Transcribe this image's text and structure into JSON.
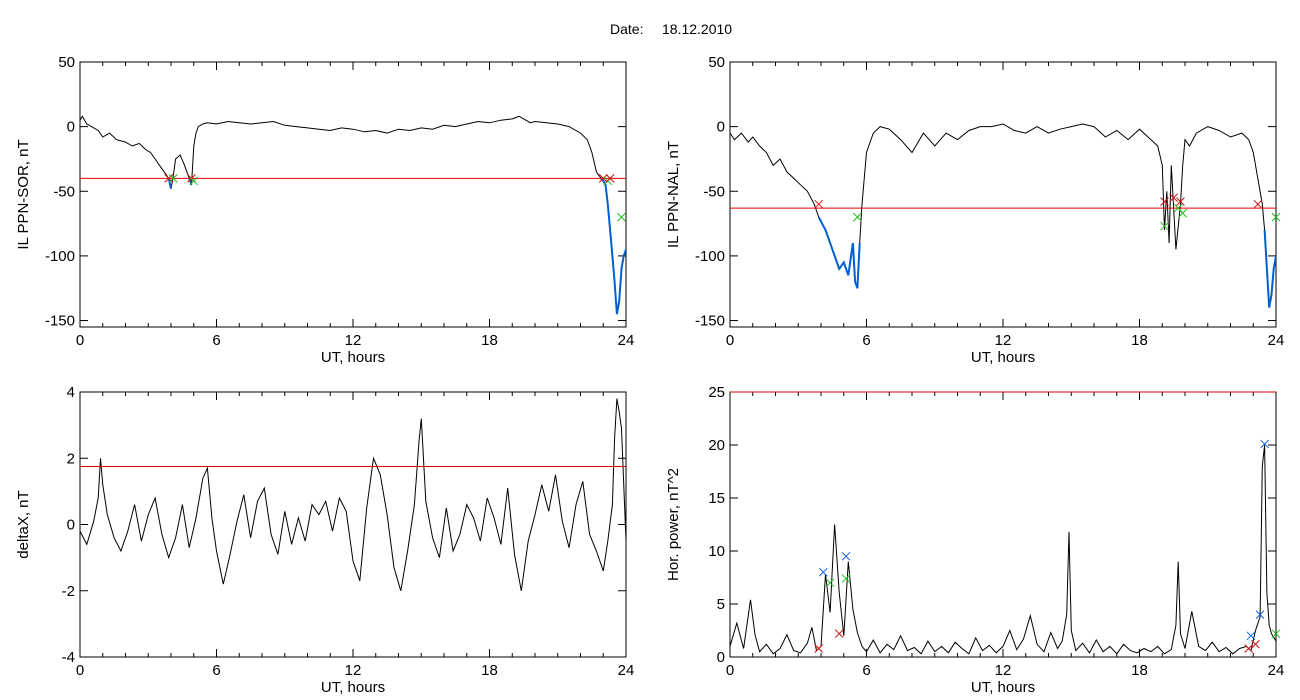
{
  "title": {
    "label": "Date:",
    "date": "18.12.2010"
  },
  "colors": {
    "trace": "#000000",
    "threshold": "#e00000",
    "highlight": "#0060d0",
    "marker_start": "#d01010",
    "marker_end": "#20c020",
    "marker_peak": "#1060e0"
  },
  "chart_data": [
    {
      "id": "il-ppn-sor",
      "type": "line",
      "xlabel": "UT, hours",
      "ylabel": "IL PPN-SOR, nT",
      "xlim": [
        0,
        24
      ],
      "ylim": [
        -155,
        50
      ],
      "xticks": [
        0,
        6,
        12,
        18,
        24
      ],
      "yticks": [
        50,
        0,
        -50,
        -100,
        -150
      ],
      "threshold": -40,
      "series": [
        {
          "x": [
            0,
            0.1,
            0.3,
            0.5,
            0.8,
            1.0,
            1.3,
            1.6,
            2.0,
            2.3,
            2.6,
            2.9,
            3.1,
            3.3,
            3.5,
            3.7,
            3.9,
            4.0,
            4.1,
            4.2,
            4.4,
            4.6,
            4.8,
            4.9,
            5.0,
            5.1,
            5.2,
            5.4,
            5.6,
            6.0,
            6.5,
            7.0,
            7.5,
            8.0,
            8.5,
            9.0,
            9.5,
            10.0,
            10.5,
            11.0,
            11.5,
            12.0,
            12.5,
            13.0,
            13.5,
            14.0,
            14.5,
            15.0,
            15.5,
            16.0,
            16.5,
            17.0,
            17.5,
            18.0,
            18.5,
            19.0,
            19.3,
            19.6,
            19.8,
            20.0,
            20.5,
            21.0,
            21.5,
            22.0,
            22.3,
            22.5,
            22.7,
            22.9,
            23.0,
            23.1,
            23.2,
            23.3,
            23.4,
            23.5,
            23.6,
            23.7,
            23.8,
            23.9,
            24.0
          ],
          "y": [
            5,
            8,
            2,
            0,
            -3,
            -8,
            -5,
            -10,
            -12,
            -15,
            -13,
            -18,
            -20,
            -25,
            -30,
            -35,
            -40,
            -48,
            -38,
            -25,
            -22,
            -30,
            -40,
            -45,
            -15,
            -5,
            0,
            2,
            3,
            2,
            4,
            3,
            2,
            3,
            4,
            1,
            0,
            -1,
            -2,
            -3,
            -1,
            -2,
            -4,
            -3,
            -5,
            -2,
            -3,
            -1,
            -2,
            1,
            0,
            2,
            4,
            3,
            5,
            6,
            8,
            5,
            3,
            4,
            3,
            2,
            0,
            -5,
            -10,
            -20,
            -35,
            -40,
            -42,
            -45,
            -60,
            -80,
            -100,
            -120,
            -145,
            -135,
            -110,
            -100,
            -95
          ]
        }
      ],
      "markers": [
        {
          "kind": "start",
          "x": 3.9,
          "y": -40
        },
        {
          "kind": "end",
          "x": 4.1,
          "y": -40
        },
        {
          "kind": "start",
          "x": 4.9,
          "y": -40
        },
        {
          "kind": "end",
          "x": 5.0,
          "y": -42
        },
        {
          "kind": "start",
          "x": 23.0,
          "y": -40
        },
        {
          "kind": "end",
          "x": 23.2,
          "y": -42
        },
        {
          "kind": "start",
          "x": 23.3,
          "y": -40
        },
        {
          "kind": "end",
          "x": 23.8,
          "y": -70
        }
      ]
    },
    {
      "id": "il-ppn-nal",
      "type": "line",
      "xlabel": "UT, hours",
      "ylabel": "IL PPN-NAL, nT",
      "xlim": [
        0,
        24
      ],
      "ylim": [
        -155,
        50
      ],
      "xticks": [
        0,
        6,
        12,
        18,
        24
      ],
      "yticks": [
        50,
        0,
        -50,
        -100,
        -150
      ],
      "threshold": -63,
      "series": [
        {
          "x": [
            0,
            0.2,
            0.5,
            0.8,
            1.0,
            1.3,
            1.6,
            1.9,
            2.2,
            2.5,
            2.8,
            3.1,
            3.4,
            3.7,
            3.9,
            4.2,
            4.5,
            4.8,
            5.0,
            5.2,
            5.4,
            5.5,
            5.6,
            5.7,
            5.8,
            6.0,
            6.3,
            6.6,
            7.0,
            7.5,
            8.0,
            8.5,
            9.0,
            9.5,
            10.0,
            10.5,
            11.0,
            11.5,
            12.0,
            12.5,
            13.0,
            13.5,
            14.0,
            14.5,
            15.0,
            15.5,
            16.0,
            16.5,
            17.0,
            17.5,
            18.0,
            18.5,
            18.8,
            19.0,
            19.1,
            19.2,
            19.3,
            19.4,
            19.6,
            19.8,
            19.9,
            20.0,
            20.2,
            20.5,
            21.0,
            21.5,
            22.0,
            22.5,
            22.8,
            23.0,
            23.2,
            23.4,
            23.5,
            23.6,
            23.7,
            23.8,
            23.9,
            24.0
          ],
          "y": [
            -5,
            -10,
            -5,
            -12,
            -8,
            -15,
            -20,
            -30,
            -25,
            -35,
            -40,
            -45,
            -50,
            -60,
            -70,
            -80,
            -95,
            -110,
            -105,
            -115,
            -90,
            -120,
            -125,
            -90,
            -60,
            -20,
            -5,
            0,
            -2,
            -10,
            -20,
            -5,
            -15,
            -5,
            -10,
            -3,
            0,
            0,
            2,
            -3,
            -5,
            0,
            -5,
            -2,
            0,
            2,
            0,
            -8,
            -3,
            -10,
            -2,
            -10,
            -15,
            -30,
            -80,
            -50,
            -90,
            -30,
            -95,
            -60,
            -30,
            -10,
            -15,
            -5,
            0,
            -3,
            -8,
            -5,
            -10,
            -20,
            -40,
            -60,
            -80,
            -110,
            -140,
            -130,
            -110,
            -100
          ]
        }
      ],
      "markers": [
        {
          "kind": "start",
          "x": 3.9,
          "y": -60
        },
        {
          "kind": "end",
          "x": 5.6,
          "y": -70
        },
        {
          "kind": "start",
          "x": 19.1,
          "y": -58
        },
        {
          "kind": "end",
          "x": 19.1,
          "y": -77
        },
        {
          "kind": "start",
          "x": 19.5,
          "y": -55
        },
        {
          "kind": "end",
          "x": 19.7,
          "y": -63
        },
        {
          "kind": "start",
          "x": 19.8,
          "y": -58
        },
        {
          "kind": "end",
          "x": 19.9,
          "y": -67
        },
        {
          "kind": "start",
          "x": 23.2,
          "y": -60
        },
        {
          "kind": "end",
          "x": 24.0,
          "y": -70
        }
      ]
    },
    {
      "id": "delta-x",
      "type": "line",
      "xlabel": "UT, hours",
      "ylabel": "deltaX, nT",
      "xlim": [
        0,
        24
      ],
      "ylim": [
        -4,
        4
      ],
      "xticks": [
        0,
        6,
        12,
        18,
        24
      ],
      "yticks": [
        4,
        2,
        0,
        -2,
        -4
      ],
      "threshold": 1.75,
      "series": [
        {
          "x": [
            0,
            0.3,
            0.6,
            0.8,
            0.9,
            1.0,
            1.2,
            1.5,
            1.8,
            2.1,
            2.4,
            2.7,
            3.0,
            3.3,
            3.6,
            3.9,
            4.2,
            4.5,
            4.8,
            5.1,
            5.4,
            5.6,
            5.8,
            6.0,
            6.3,
            6.6,
            6.9,
            7.2,
            7.5,
            7.8,
            8.1,
            8.4,
            8.7,
            9.0,
            9.3,
            9.6,
            9.9,
            10.2,
            10.5,
            10.8,
            11.1,
            11.4,
            11.7,
            12.0,
            12.3,
            12.6,
            12.9,
            13.2,
            13.5,
            13.8,
            14.1,
            14.4,
            14.7,
            14.9,
            15.0,
            15.2,
            15.5,
            15.8,
            16.1,
            16.4,
            16.7,
            17.0,
            17.3,
            17.6,
            17.9,
            18.2,
            18.5,
            18.8,
            19.1,
            19.4,
            19.7,
            20.0,
            20.3,
            20.6,
            20.9,
            21.2,
            21.5,
            21.8,
            22.1,
            22.4,
            22.7,
            23.0,
            23.2,
            23.4,
            23.5,
            23.6,
            23.7,
            23.8,
            24.0
          ],
          "y": [
            -0.2,
            -0.6,
            0.1,
            0.8,
            2.0,
            1.2,
            0.3,
            -0.4,
            -0.8,
            -0.2,
            0.6,
            -0.5,
            0.3,
            0.8,
            -0.3,
            -1.0,
            -0.4,
            0.6,
            -0.7,
            0.2,
            1.4,
            1.7,
            0.2,
            -0.8,
            -1.8,
            -0.9,
            0.1,
            0.9,
            -0.4,
            0.7,
            1.1,
            -0.3,
            -0.9,
            0.4,
            -0.6,
            0.2,
            -0.5,
            0.6,
            0.3,
            0.7,
            -0.2,
            0.8,
            0.4,
            -1.1,
            -1.7,
            0.5,
            2.0,
            1.5,
            0.3,
            -1.3,
            -2.0,
            -0.8,
            0.6,
            2.5,
            3.2,
            0.7,
            -0.4,
            -1.0,
            0.5,
            -0.8,
            -0.3,
            0.6,
            0.2,
            -0.5,
            0.8,
            0.2,
            -0.6,
            1.1,
            -0.9,
            -2.0,
            -0.5,
            0.3,
            1.2,
            0.4,
            1.5,
            0.1,
            -0.7,
            0.6,
            1.3,
            -0.3,
            -0.8,
            -1.4,
            -0.5,
            0.6,
            2.6,
            3.8,
            3.4,
            2.9,
            -0.5
          ]
        }
      ],
      "markers": []
    },
    {
      "id": "hor-power",
      "type": "line",
      "xlabel": "UT, hours",
      "ylabel": "Hor. power, nT^2",
      "xlim": [
        0,
        24
      ],
      "ylim": [
        0,
        25
      ],
      "xticks": [
        0,
        6,
        12,
        18,
        24
      ],
      "yticks": [
        25,
        20,
        15,
        10,
        5,
        0
      ],
      "threshold": 25,
      "series": [
        {
          "x": [
            0,
            0.3,
            0.6,
            0.9,
            1.1,
            1.3,
            1.6,
            1.9,
            2.2,
            2.5,
            2.8,
            3.1,
            3.4,
            3.6,
            3.8,
            4.0,
            4.2,
            4.4,
            4.6,
            4.8,
            5.0,
            5.2,
            5.4,
            5.6,
            5.8,
            6.0,
            6.3,
            6.6,
            6.9,
            7.2,
            7.5,
            7.8,
            8.1,
            8.4,
            8.7,
            9.0,
            9.3,
            9.6,
            9.9,
            10.2,
            10.5,
            10.8,
            11.1,
            11.4,
            11.7,
            12.0,
            12.3,
            12.6,
            12.9,
            13.2,
            13.5,
            13.8,
            14.1,
            14.4,
            14.6,
            14.8,
            14.9,
            15.0,
            15.2,
            15.5,
            15.8,
            16.1,
            16.4,
            16.7,
            17.0,
            17.3,
            17.6,
            17.9,
            18.2,
            18.5,
            18.8,
            19.1,
            19.4,
            19.6,
            19.7,
            19.8,
            20.0,
            20.3,
            20.6,
            20.9,
            21.2,
            21.5,
            21.8,
            22.1,
            22.4,
            22.7,
            22.9,
            23.1,
            23.3,
            23.4,
            23.5,
            23.6,
            23.7,
            23.8,
            24.0
          ],
          "y": [
            1.0,
            3.2,
            0.8,
            5.4,
            2.1,
            0.5,
            1.2,
            0.3,
            0.8,
            2.1,
            0.6,
            0.4,
            1.3,
            2.8,
            0.6,
            1.0,
            7.8,
            4.2,
            12.5,
            6.1,
            2.0,
            9.0,
            4.5,
            2.3,
            1.0,
            0.5,
            1.6,
            0.4,
            1.2,
            0.7,
            2.0,
            0.6,
            0.9,
            0.3,
            1.5,
            0.5,
            1.0,
            0.4,
            1.4,
            0.8,
            0.3,
            1.8,
            0.6,
            1.1,
            0.4,
            1.0,
            2.5,
            0.7,
            1.7,
            3.9,
            1.2,
            0.5,
            2.3,
            0.8,
            1.5,
            4.0,
            11.8,
            2.5,
            0.6,
            1.3,
            0.4,
            1.6,
            0.5,
            1.0,
            0.3,
            1.2,
            0.6,
            0.4,
            0.8,
            0.5,
            1.0,
            0.3,
            0.7,
            3.0,
            9.0,
            2.2,
            0.8,
            4.3,
            1.0,
            0.6,
            1.4,
            0.5,
            0.9,
            0.3,
            0.8,
            1.0,
            0.6,
            2.5,
            3.8,
            18.0,
            20.0,
            6.0,
            3.0,
            2.2,
            1.5
          ]
        }
      ],
      "markers": [
        {
          "kind": "start",
          "x": 3.9,
          "y": 0.8
        },
        {
          "kind": "peak",
          "x": 4.1,
          "y": 8.0
        },
        {
          "kind": "end",
          "x": 4.4,
          "y": 7.0
        },
        {
          "kind": "start",
          "x": 4.8,
          "y": 2.2
        },
        {
          "kind": "peak",
          "x": 5.1,
          "y": 9.5
        },
        {
          "kind": "end",
          "x": 5.1,
          "y": 7.4
        },
        {
          "kind": "start",
          "x": 22.8,
          "y": 0.8
        },
        {
          "kind": "peak",
          "x": 22.9,
          "y": 2.0
        },
        {
          "kind": "start",
          "x": 23.1,
          "y": 1.2
        },
        {
          "kind": "peak",
          "x": 23.3,
          "y": 4.0
        },
        {
          "kind": "peak",
          "x": 23.5,
          "y": 20.1
        },
        {
          "kind": "end",
          "x": 24.0,
          "y": 2.2
        }
      ]
    }
  ]
}
